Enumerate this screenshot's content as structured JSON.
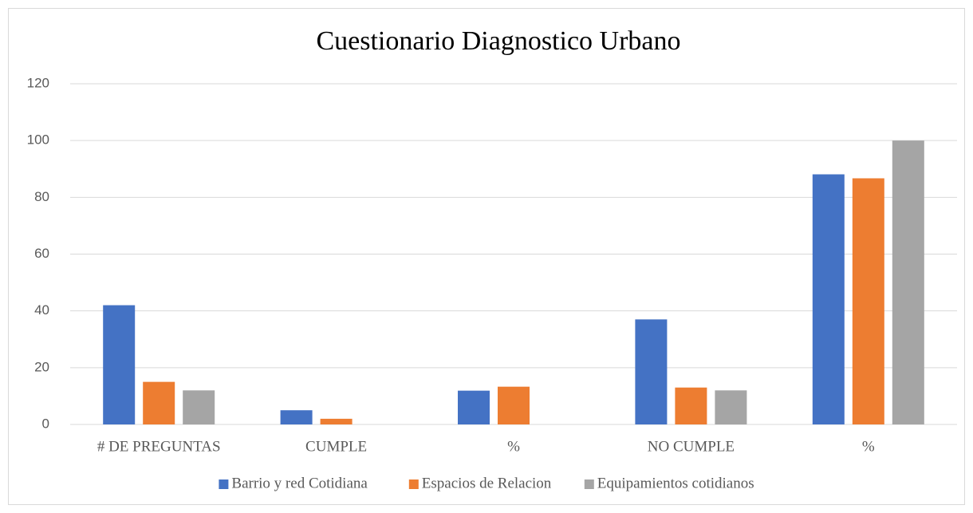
{
  "chart_data": {
    "type": "bar",
    "title": "Cuestionario Diagnostico Urbano",
    "categories": [
      "# DE PREGUNTAS",
      "CUMPLE",
      "%",
      "NO CUMPLE",
      "%"
    ],
    "series": [
      {
        "name": "Barrio y red Cotidiana",
        "color": "#4472c4",
        "values": [
          42,
          5,
          11.9,
          37,
          88.1
        ]
      },
      {
        "name": "Espacios de Relacion",
        "color": "#ed7d31",
        "values": [
          15,
          2,
          13.3,
          13,
          86.7
        ]
      },
      {
        "name": "Equipamientos cotidianos",
        "color": "#a5a5a5",
        "values": [
          12,
          0,
          0,
          12,
          100
        ]
      }
    ],
    "ylim": [
      0,
      120
    ],
    "yticks": [
      0,
      20,
      40,
      60,
      80,
      100,
      120
    ],
    "grid": true,
    "legend": "bottom"
  }
}
